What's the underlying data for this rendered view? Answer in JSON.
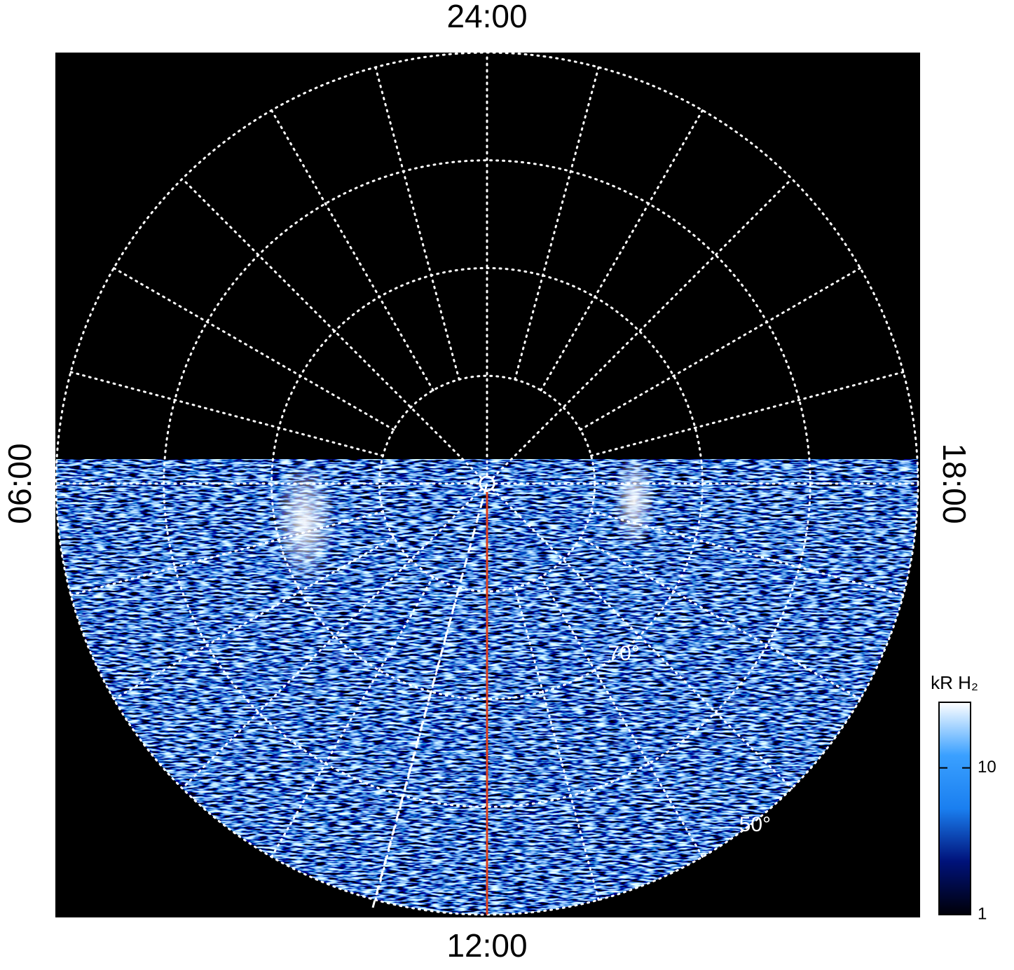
{
  "chart_data": {
    "type": "polar-map",
    "xlim": [
      0,
      24
    ],
    "xticks": [
      {
        "value": 0,
        "label": "24:00"
      },
      {
        "value": 6,
        "label": "06:00"
      },
      {
        "value": 12,
        "label": "12:00"
      },
      {
        "value": 18,
        "label": "18:00"
      }
    ],
    "x_grid_step": 1,
    "rlim": [
      90,
      50
    ],
    "rgrid": [
      80,
      70,
      60,
      50
    ],
    "rticks": [
      {
        "value": 70,
        "label": "70°"
      },
      {
        "value": 50,
        "label": "50°"
      }
    ],
    "grid": true,
    "highlight_meridian": {
      "value": 12,
      "color": "#e0401a"
    },
    "colorbar": {
      "title": "kR H₂",
      "scale": "log",
      "lim": [
        1,
        28
      ],
      "ticks": [
        1,
        10
      ],
      "colors": [
        "#000008",
        "#00127a",
        "#1a7ff0",
        "#3aa0ff",
        "#ffffff"
      ]
    }
  }
}
